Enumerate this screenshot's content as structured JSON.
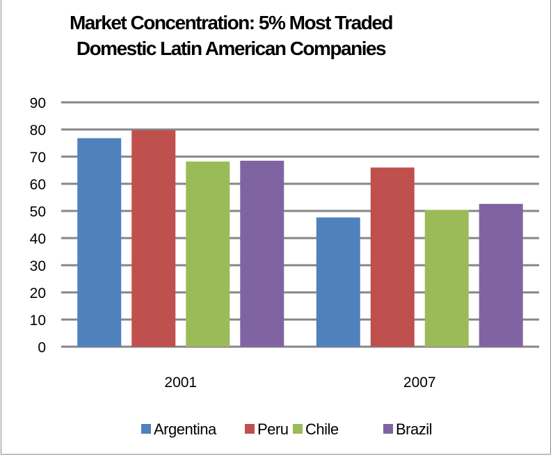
{
  "chart_data": {
    "type": "bar",
    "title": "Market Concentration:  5% Most Traded\nDomestic Latin American Companies",
    "xlabel": "",
    "ylabel": "",
    "categories": [
      "2001",
      "2007"
    ],
    "series": [
      {
        "name": "Argentina",
        "values": [
          76.8,
          47.6
        ],
        "color": "#4f81bd"
      },
      {
        "name": "Peru",
        "values": [
          79.7,
          66.0
        ],
        "color": "#c0504d"
      },
      {
        "name": "Chile",
        "values": [
          68.2,
          50.4
        ],
        "color": "#9bbb59"
      },
      {
        "name": "Brazil",
        "values": [
          68.5,
          52.6
        ],
        "color": "#8064a2"
      }
    ],
    "ylim": [
      0,
      90
    ],
    "yticks": [
      0,
      10,
      20,
      30,
      40,
      50,
      60,
      70,
      80,
      90
    ],
    "grid": true,
    "legend": "bottom"
  }
}
